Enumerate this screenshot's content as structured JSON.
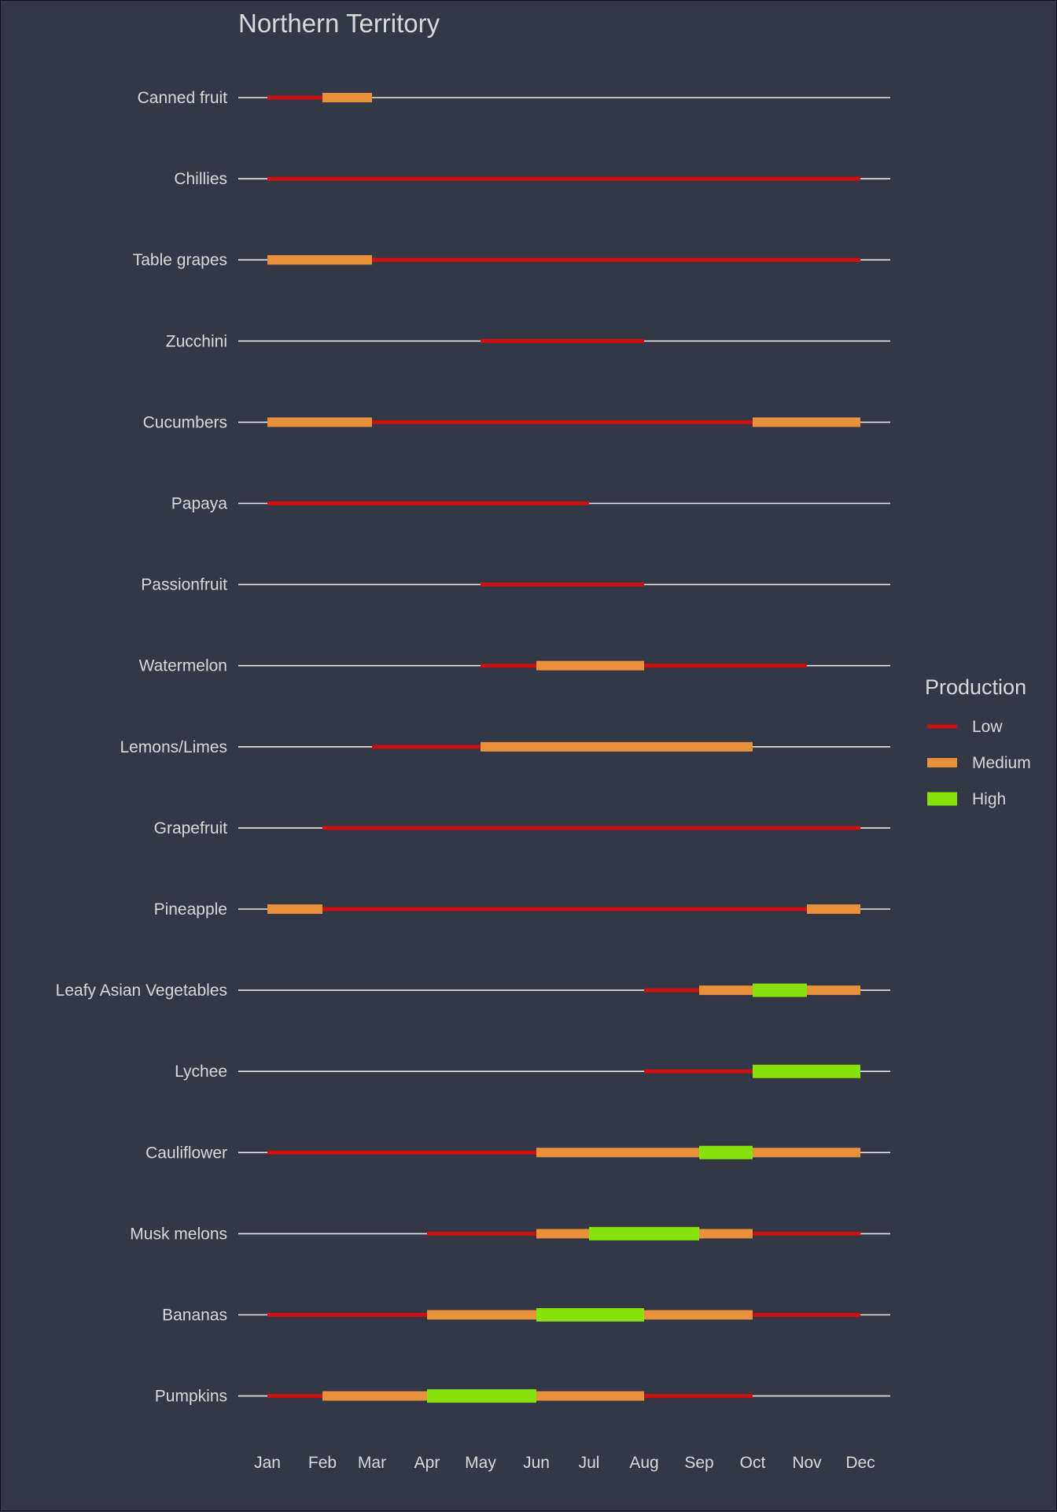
{
  "chart_data": {
    "type": "timeline",
    "title": "Northern Territory",
    "x_ticks": [
      "Jan",
      "Feb",
      "Mar",
      "Apr",
      "May",
      "Jun",
      "Jul",
      "Aug",
      "Sep",
      "Oct",
      "Nov",
      "Dec"
    ],
    "legend": {
      "title": "Production",
      "placement": "right",
      "items": [
        {
          "level": "Low",
          "label": "Low",
          "color": "#cc1010"
        },
        {
          "level": "Medium",
          "label": "Medium",
          "color": "#e8913b"
        },
        {
          "level": "High",
          "label": "High",
          "color": "#87e10a"
        }
      ]
    },
    "categories": [
      {
        "name": "Canned fruit",
        "segments": [
          {
            "start": 1,
            "end": 2,
            "level": "Low"
          },
          {
            "start": 2,
            "end": 3,
            "level": "Medium"
          }
        ]
      },
      {
        "name": "Chillies",
        "segments": [
          {
            "start": 1,
            "end": 12,
            "level": "Low"
          }
        ]
      },
      {
        "name": "Table grapes",
        "segments": [
          {
            "start": 1,
            "end": 3,
            "level": "Medium"
          },
          {
            "start": 3,
            "end": 12,
            "level": "Low"
          }
        ]
      },
      {
        "name": "Zucchini",
        "segments": [
          {
            "start": 5,
            "end": 8,
            "level": "Low"
          }
        ]
      },
      {
        "name": "Cucumbers",
        "segments": [
          {
            "start": 1,
            "end": 3,
            "level": "Medium"
          },
          {
            "start": 3,
            "end": 10,
            "level": "Low"
          },
          {
            "start": 10,
            "end": 12,
            "level": "Medium"
          }
        ]
      },
      {
        "name": "Papaya",
        "segments": [
          {
            "start": 1,
            "end": 7,
            "level": "Low"
          }
        ]
      },
      {
        "name": "Passionfruit",
        "segments": [
          {
            "start": 5,
            "end": 8,
            "level": "Low"
          }
        ]
      },
      {
        "name": "Watermelon",
        "segments": [
          {
            "start": 5,
            "end": 6,
            "level": "Low"
          },
          {
            "start": 6,
            "end": 8,
            "level": "Medium"
          },
          {
            "start": 8,
            "end": 11,
            "level": "Low"
          }
        ]
      },
      {
        "name": "Lemons/Limes",
        "segments": [
          {
            "start": 3,
            "end": 5,
            "level": "Low"
          },
          {
            "start": 5,
            "end": 10,
            "level": "Medium"
          }
        ]
      },
      {
        "name": "Grapefruit",
        "segments": [
          {
            "start": 2,
            "end": 12,
            "level": "Low"
          }
        ]
      },
      {
        "name": "Pineapple",
        "segments": [
          {
            "start": 1,
            "end": 2,
            "level": "Medium"
          },
          {
            "start": 2,
            "end": 11,
            "level": "Low"
          },
          {
            "start": 11,
            "end": 12,
            "level": "Medium"
          }
        ]
      },
      {
        "name": "Leafy Asian Vegetables",
        "segments": [
          {
            "start": 8,
            "end": 9,
            "level": "Low"
          },
          {
            "start": 9,
            "end": 10,
            "level": "Medium"
          },
          {
            "start": 10,
            "end": 11,
            "level": "High"
          },
          {
            "start": 11,
            "end": 12,
            "level": "Medium"
          }
        ]
      },
      {
        "name": "Lychee",
        "segments": [
          {
            "start": 8,
            "end": 10,
            "level": "Low"
          },
          {
            "start": 10,
            "end": 12,
            "level": "High"
          }
        ]
      },
      {
        "name": "Cauliflower",
        "segments": [
          {
            "start": 1,
            "end": 6,
            "level": "Low"
          },
          {
            "start": 6,
            "end": 9,
            "level": "Medium"
          },
          {
            "start": 9,
            "end": 10,
            "level": "High"
          },
          {
            "start": 10,
            "end": 12,
            "level": "Medium"
          }
        ]
      },
      {
        "name": "Musk melons",
        "segments": [
          {
            "start": 4,
            "end": 6,
            "level": "Low"
          },
          {
            "start": 6,
            "end": 7,
            "level": "Medium"
          },
          {
            "start": 7,
            "end": 9,
            "level": "High"
          },
          {
            "start": 9,
            "end": 10,
            "level": "Medium"
          },
          {
            "start": 10,
            "end": 12,
            "level": "Low"
          }
        ]
      },
      {
        "name": "Bananas",
        "segments": [
          {
            "start": 1,
            "end": 4,
            "level": "Low"
          },
          {
            "start": 4,
            "end": 6,
            "level": "Medium"
          },
          {
            "start": 6,
            "end": 8,
            "level": "High"
          },
          {
            "start": 8,
            "end": 10,
            "level": "Medium"
          },
          {
            "start": 10,
            "end": 12,
            "level": "Low"
          }
        ]
      },
      {
        "name": "Pumpkins",
        "segments": [
          {
            "start": 1,
            "end": 2,
            "level": "Low"
          },
          {
            "start": 2,
            "end": 4,
            "level": "Medium"
          },
          {
            "start": 4,
            "end": 6,
            "level": "High"
          },
          {
            "start": 6,
            "end": 8,
            "level": "Medium"
          },
          {
            "start": 8,
            "end": 10,
            "level": "Low"
          }
        ]
      }
    ]
  }
}
